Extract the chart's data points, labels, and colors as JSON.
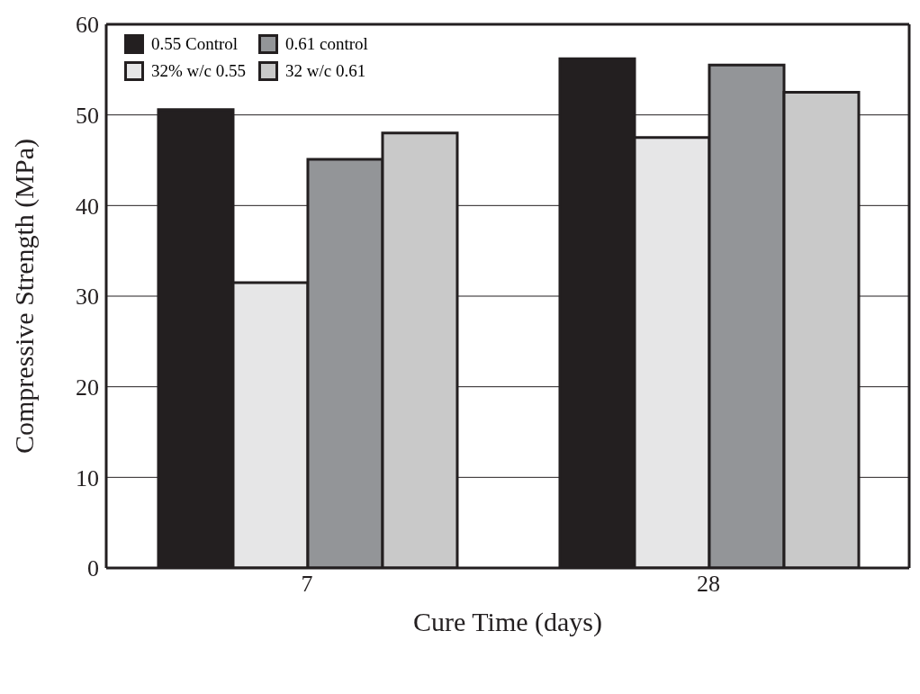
{
  "chart_data": {
    "type": "bar",
    "xlabel": "Cure Time (days)",
    "ylabel": "Compressive Strength (MPa)",
    "categories": [
      "7",
      "28"
    ],
    "series": [
      {
        "name": "0.55 Control",
        "color": "#231f20",
        "values": [
          50.6,
          56.2
        ]
      },
      {
        "name": "32% w/c 0.55",
        "color": "#e6e6e7",
        "values": [
          31.5,
          47.5
        ]
      },
      {
        "name": "0.61 control",
        "color": "#939598",
        "values": [
          45.1,
          55.5
        ]
      },
      {
        "name": "32 w/c 0.61",
        "color": "#c9c9c9",
        "values": [
          48.0,
          52.5
        ]
      }
    ],
    "ylim": [
      0,
      60
    ],
    "yticks": [
      0,
      10,
      20,
      30,
      40,
      50,
      60
    ],
    "grid": "y",
    "legend": "top left"
  }
}
